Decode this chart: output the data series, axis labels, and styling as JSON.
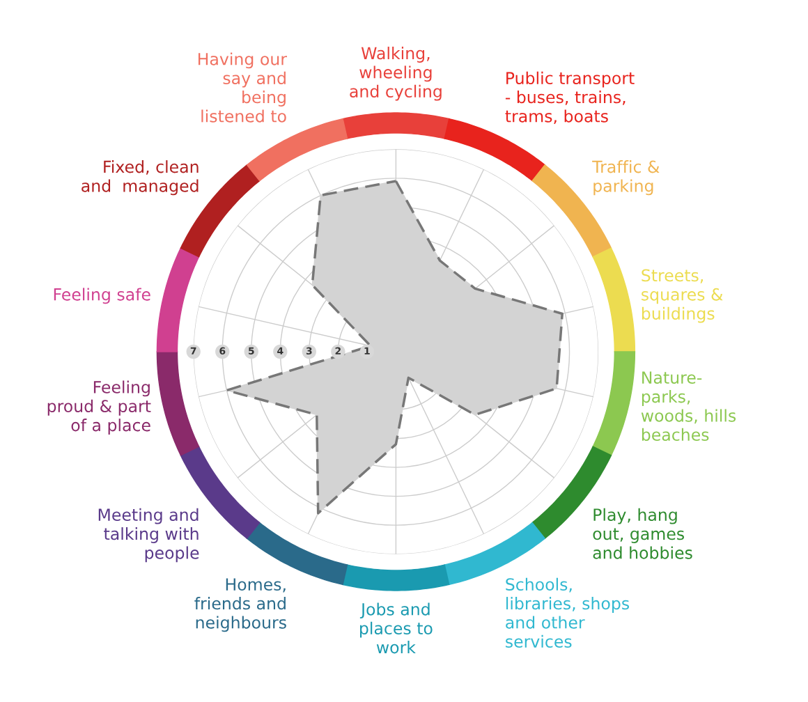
{
  "chart_data": {
    "type": "radar",
    "categories": [
      "Walking,\nwheeling\nand cycling",
      "Public transport\n- buses, trains,\ntrams, boats",
      "Traffic &\nparking",
      "Streets,\nsquares &\nbuildings",
      "Nature-\nparks,\nwoods, hills\nbeaches",
      "Play, hang\nout, games\nand hobbies",
      "Schools,\nlibraries, shops\nand other\nservices",
      "Jobs and\nplaces to\nwork",
      "Homes,\nfriends and\nneighbours",
      "Meeting and\ntalking with\npeople",
      "Feeling\nproud & part\nof a place",
      "Feeling safe",
      "Fixed, clean\nand  managed",
      "Having our\nsay and\nbeing\nlistened to"
    ],
    "colors": [
      "#e8403a",
      "#e8231d",
      "#f0b450",
      "#ecdc50",
      "#8cc850",
      "#2e8b2e",
      "#30b8d0",
      "#1a9ab0",
      "#2a6a8a",
      "#5a3a8a",
      "#8a2a6a",
      "#d04090",
      "#b02020",
      "#f07060"
    ],
    "series": [
      {
        "color": "#d3d3d3",
        "values": [
          5.9,
          3.5,
          3.5,
          5.9,
          5.7,
          3.5,
          1.0,
          3.2,
          6.2,
          3.5,
          6.0,
          0.9,
          3.7,
          6.0
        ]
      }
    ],
    "ylim": [
      0,
      7
    ],
    "yticks": [
      1,
      2,
      3,
      4,
      5,
      6,
      7
    ],
    "grid": true,
    "line_style": "dashed",
    "marker": "none"
  }
}
